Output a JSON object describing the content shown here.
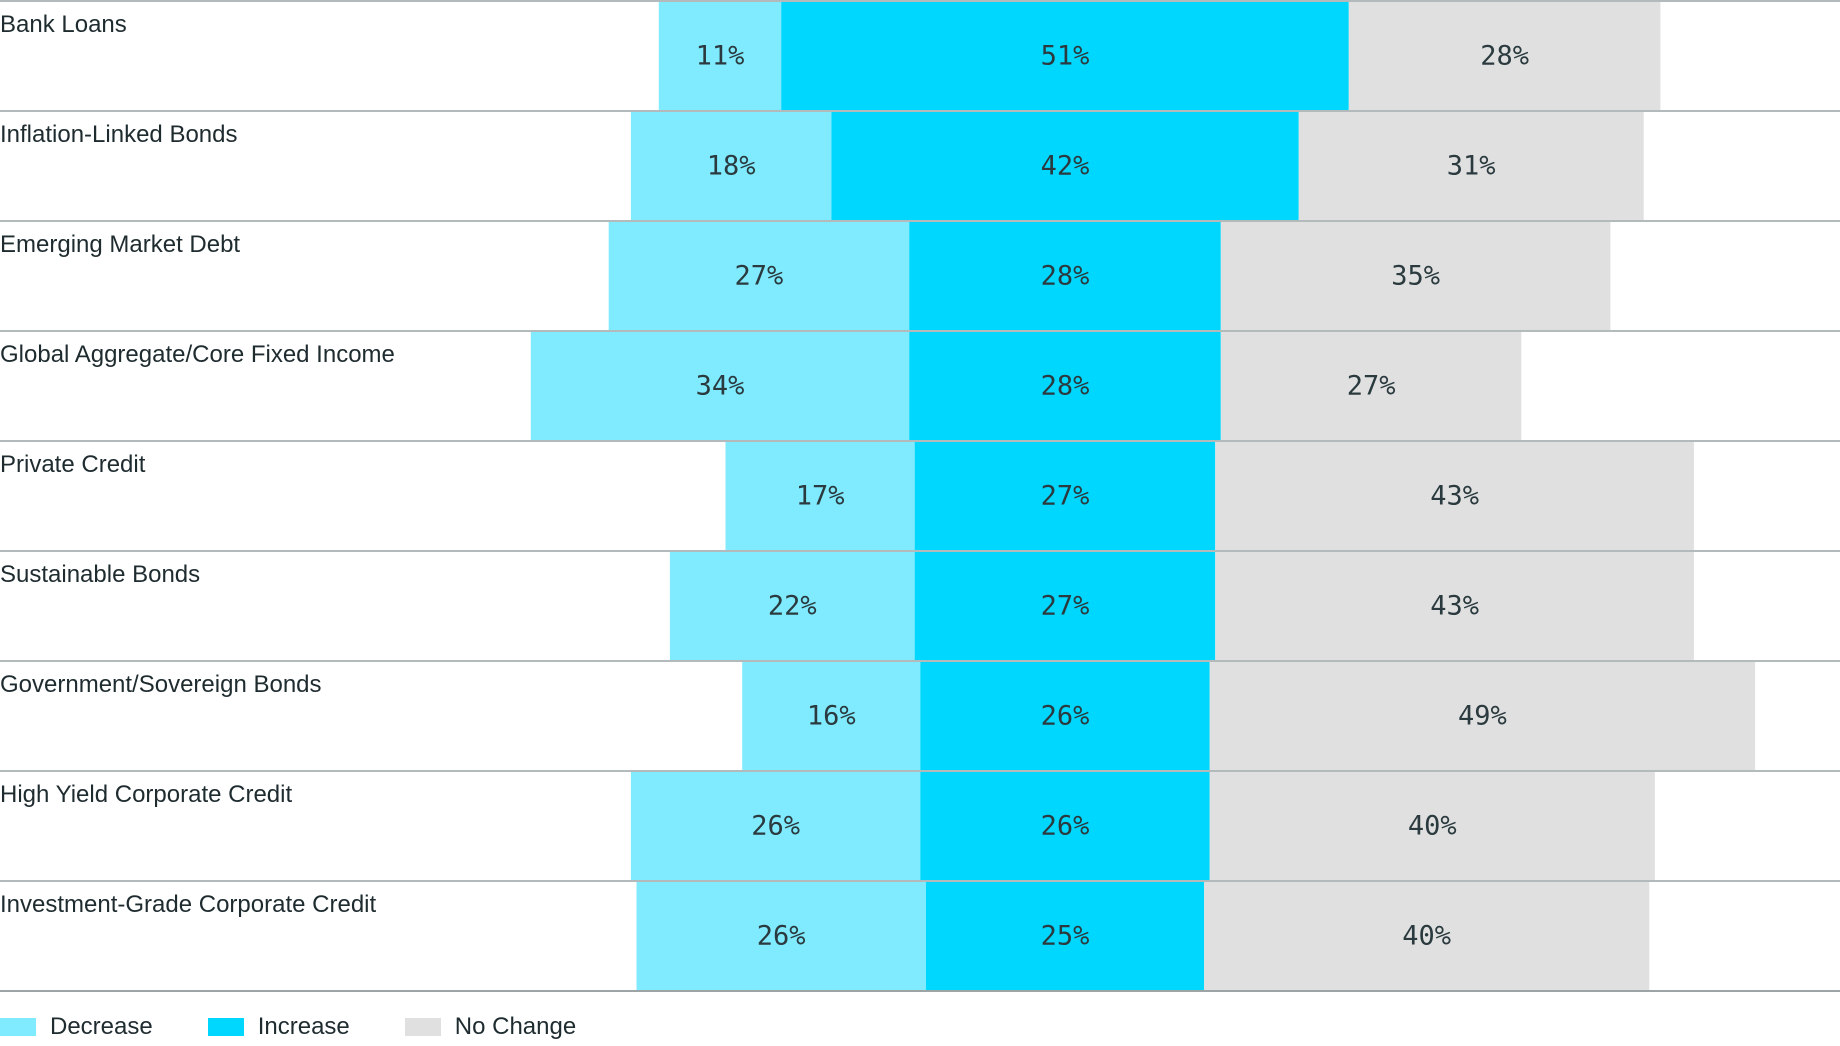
{
  "chart_data": {
    "type": "bar",
    "orientation": "horizontal-stacked-diverging",
    "unit": "%",
    "categories": [
      "Bank Loans",
      "Inflation-Linked Bonds",
      "Emerging Market Debt",
      "Global Aggregate/Core Fixed Income",
      "Private Credit",
      "Sustainable Bonds",
      "Government/Sovereign Bonds",
      "High Yield Corporate Credit",
      "Investment-Grade Corporate Credit"
    ],
    "series": [
      {
        "name": "Decrease",
        "color": "#80ebff",
        "values": [
          11,
          18,
          27,
          34,
          17,
          22,
          16,
          26,
          26
        ]
      },
      {
        "name": "Increase",
        "color": "#00d7ff",
        "values": [
          51,
          42,
          28,
          28,
          27,
          27,
          26,
          26,
          25
        ]
      },
      {
        "name": "No Change",
        "color": "#e0e0e0",
        "values": [
          28,
          31,
          35,
          27,
          43,
          43,
          49,
          40,
          40
        ]
      }
    ],
    "value_labels": [
      [
        "11%",
        "51%",
        "28%"
      ],
      [
        "18%",
        "42%",
        "31%"
      ],
      [
        "27%",
        "28%",
        "35%"
      ],
      [
        "34%",
        "28%",
        "27%"
      ],
      [
        "17%",
        "27%",
        "43%"
      ],
      [
        "22%",
        "27%",
        "43%"
      ],
      [
        "16%",
        "26%",
        "49%"
      ],
      [
        "26%",
        "26%",
        "40%"
      ],
      [
        "26%",
        "25%",
        "40%"
      ]
    ],
    "legend": [
      "Decrease",
      "Increase",
      "No Change"
    ],
    "legend_position": "bottom-left",
    "grid": false
  },
  "colors": {
    "divider": "#9ca4a6",
    "text": "#1e2b2f"
  }
}
